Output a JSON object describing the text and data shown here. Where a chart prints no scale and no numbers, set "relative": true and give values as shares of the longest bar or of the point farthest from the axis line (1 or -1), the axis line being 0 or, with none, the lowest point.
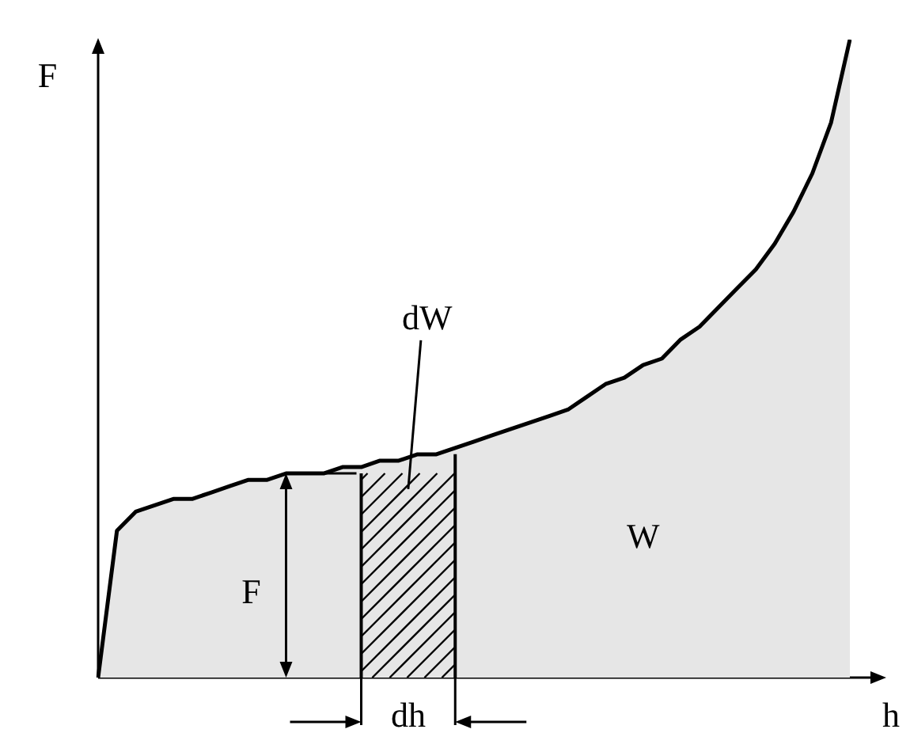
{
  "chart_data": {
    "type": "area",
    "relative": true,
    "xlabel": "h",
    "ylabel": "F",
    "tick_labels": false,
    "legend": false,
    "categories": [
      null,
      null,
      null,
      null,
      null,
      null,
      null,
      null,
      null,
      null,
      null,
      null,
      null,
      null,
      null,
      null,
      null,
      null,
      null,
      null,
      null,
      null,
      null,
      null,
      null,
      null,
      null,
      null,
      null,
      null,
      null,
      null,
      null,
      null,
      null,
      null,
      null,
      null,
      null,
      null,
      null
    ],
    "series": [
      {
        "color": "#000000",
        "values": [
          0,
          0.23,
          0.26,
          0.27,
          0.28,
          0.28,
          0.29,
          0.3,
          0.31,
          0.31,
          0.32,
          0.32,
          0.32,
          0.33,
          0.33,
          0.34,
          0.34,
          0.35,
          0.35,
          0.36,
          0.37,
          0.38,
          0.39,
          0.4,
          0.41,
          0.42,
          0.44,
          0.46,
          0.47,
          0.49,
          0.5,
          0.53,
          0.55,
          0.58,
          0.61,
          0.64,
          0.68,
          0.73,
          0.79,
          0.87,
          1
        ]
      }
    ],
    "annotations": [
      "dW",
      "W",
      "F",
      "dh"
    ]
  }
}
